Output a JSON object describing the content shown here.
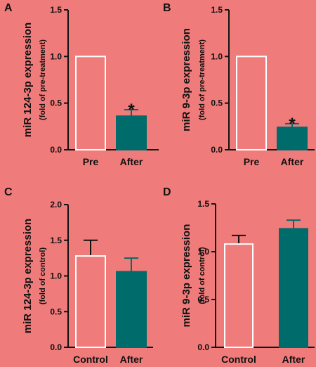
{
  "colors": {
    "background": "#f07b7b",
    "axis": "#111111",
    "open_bar_fill": "#f07b7b",
    "filled_bar": "#006b6b"
  },
  "chart_data": [
    {
      "panel": "A",
      "type": "bar",
      "ylabel": "miR 124-3p expression",
      "ylabel_sub": "(fold of pre-treatment)",
      "ylim": [
        0,
        1.5
      ],
      "yticks": [
        "0.0",
        "0.5",
        "1.0",
        "1.5"
      ],
      "categories": [
        "Pre",
        "After"
      ],
      "values": [
        1.0,
        0.36
      ],
      "errors": [
        0,
        0.07
      ],
      "filled": [
        false,
        true
      ],
      "annotations": [
        "",
        "*"
      ]
    },
    {
      "panel": "B",
      "type": "bar",
      "ylabel": "miR 9-3p expression",
      "ylabel_sub": "(fold of pre-treatment)",
      "ylim": [
        0,
        1.5
      ],
      "yticks": [
        "0.0",
        "0.5",
        "1.0",
        "1.5"
      ],
      "categories": [
        "Pre",
        "After"
      ],
      "values": [
        1.0,
        0.24
      ],
      "errors": [
        0,
        0.04
      ],
      "filled": [
        false,
        true
      ],
      "annotations": [
        "",
        "*"
      ]
    },
    {
      "panel": "C",
      "type": "bar",
      "ylabel": "miR 124-3p expression",
      "ylabel_sub": "(fold of control)",
      "ylim": [
        0,
        2.0
      ],
      "yticks": [
        "0.0",
        "0.5",
        "1.0",
        "1.5",
        "2.0"
      ],
      "categories": [
        "Control",
        "After"
      ],
      "values": [
        1.28,
        1.06
      ],
      "errors": [
        0.22,
        0.19
      ],
      "filled": [
        false,
        true
      ],
      "annotations": [
        "",
        ""
      ]
    },
    {
      "panel": "D",
      "type": "bar",
      "ylabel": "miR 9-3p expression",
      "ylabel_sub": "(fold of control)",
      "ylim": [
        0,
        1.5
      ],
      "yticks": [
        "0.0",
        "0.5",
        "1.0",
        "1.5"
      ],
      "categories": [
        "Control",
        "After"
      ],
      "values": [
        1.08,
        1.24
      ],
      "errors": [
        0.09,
        0.09
      ],
      "filled": [
        false,
        true
      ],
      "annotations": [
        "",
        ""
      ]
    }
  ]
}
